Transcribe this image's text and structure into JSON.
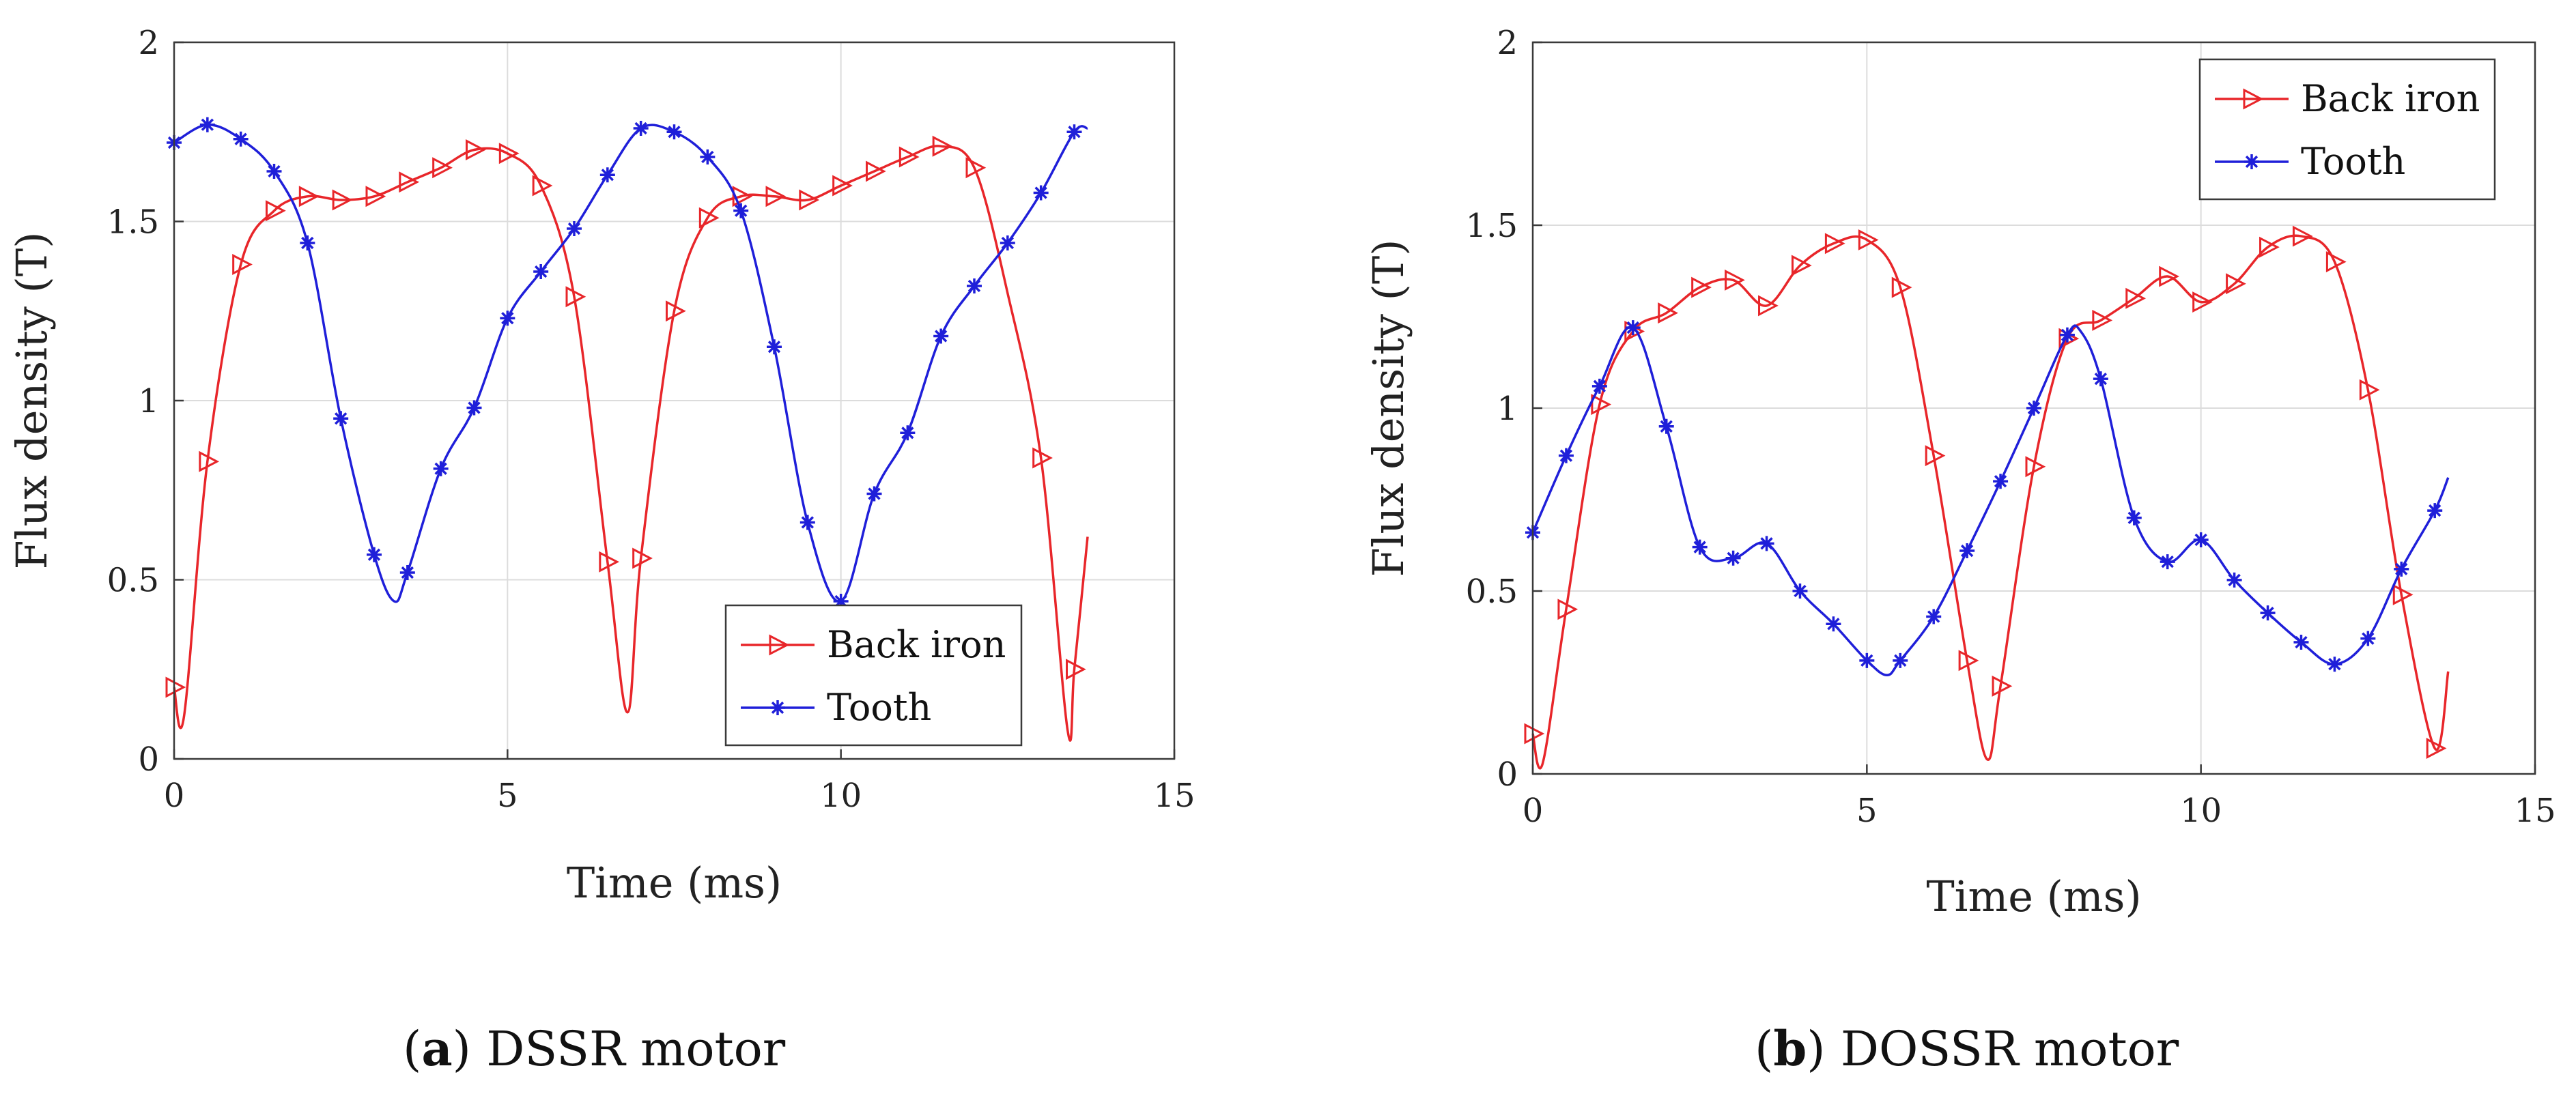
{
  "chart_data": [
    {
      "type": "line",
      "caption_letter": "a",
      "caption_text": ") DSSR motor",
      "xlabel": "Time (ms)",
      "ylabel": "Flux density (T)",
      "xlim": [
        0,
        15
      ],
      "ylim": [
        0,
        2
      ],
      "xticks": [
        0,
        5,
        10,
        15
      ],
      "yticks": [
        0,
        0.5,
        1,
        1.5,
        2
      ],
      "grid": true,
      "legend_position": "bottom-right",
      "series": [
        {
          "name": "Back iron",
          "color": "#e8262a",
          "marker": "triangle-right",
          "x": [
            0,
            0.15,
            0.5,
            1,
            1.5,
            2,
            2.5,
            3,
            3.5,
            4,
            4.5,
            5,
            5.5,
            6,
            6.5,
            6.8,
            7,
            7.5,
            8,
            8.5,
            9,
            9.5,
            10,
            10.5,
            11,
            11.5,
            12,
            12.5,
            13,
            13.4,
            13.5,
            13.7
          ],
          "y": [
            0.2,
            0.12,
            0.83,
            1.38,
            1.53,
            1.57,
            1.56,
            1.57,
            1.61,
            1.65,
            1.7,
            1.69,
            1.6,
            1.29,
            0.55,
            0.13,
            0.56,
            1.25,
            1.51,
            1.57,
            1.57,
            1.56,
            1.6,
            1.64,
            1.68,
            1.71,
            1.65,
            1.3,
            0.84,
            0.08,
            0.25,
            0.62
          ],
          "marker_x": [
            0,
            0.5,
            1,
            1.5,
            2,
            2.5,
            3,
            3.5,
            4,
            4.5,
            5,
            5.5,
            6,
            6.5,
            7,
            7.5,
            8,
            8.5,
            9,
            9.5,
            10,
            10.5,
            11,
            11.5,
            12,
            13,
            13.5
          ],
          "marker_y": [
            0.2,
            0.83,
            1.38,
            1.53,
            1.57,
            1.56,
            1.57,
            1.61,
            1.65,
            1.7,
            1.69,
            1.6,
            1.29,
            0.55,
            0.56,
            1.25,
            1.51,
            1.57,
            1.57,
            1.56,
            1.6,
            1.64,
            1.68,
            1.71,
            1.65,
            0.84,
            0.25
          ]
        },
        {
          "name": "Tooth",
          "color": "#1f1fd9",
          "marker": "asterisk",
          "x": [
            0,
            0.5,
            1,
            1.5,
            2,
            2.5,
            3,
            3.3,
            3.5,
            4,
            4.5,
            5,
            5.5,
            6,
            6.5,
            7,
            7.5,
            8,
            8.5,
            9,
            9.5,
            10,
            10.5,
            11,
            11.5,
            12,
            12.5,
            13,
            13.5,
            13.7
          ],
          "y": [
            1.72,
            1.77,
            1.73,
            1.64,
            1.44,
            0.95,
            0.57,
            0.44,
            0.52,
            0.81,
            0.98,
            1.23,
            1.36,
            1.48,
            1.63,
            1.76,
            1.75,
            1.68,
            1.53,
            1.15,
            0.66,
            0.44,
            0.74,
            0.91,
            1.18,
            1.32,
            1.44,
            1.58,
            1.75,
            1.76
          ],
          "marker_x": [
            0,
            0.5,
            1,
            1.5,
            2,
            2.5,
            3,
            3.5,
            4,
            4.5,
            5,
            5.5,
            6,
            6.5,
            7,
            7.5,
            8,
            8.5,
            9,
            9.5,
            10,
            10.5,
            11,
            11.5,
            12,
            12.5,
            13,
            13.5
          ],
          "marker_y": [
            1.72,
            1.77,
            1.73,
            1.64,
            1.44,
            0.95,
            0.57,
            0.52,
            0.81,
            0.98,
            1.23,
            1.36,
            1.48,
            1.63,
            1.76,
            1.75,
            1.68,
            1.53,
            1.15,
            0.66,
            0.44,
            0.74,
            0.91,
            1.18,
            1.32,
            1.44,
            1.58,
            1.75
          ]
        }
      ]
    },
    {
      "type": "line",
      "caption_letter": "b",
      "caption_text": ") DOSSR motor",
      "xlabel": "Time (ms)",
      "ylabel": "Flux density (T)",
      "xlim": [
        0,
        15
      ],
      "ylim": [
        0,
        2
      ],
      "xticks": [
        0,
        5,
        10,
        15
      ],
      "yticks": [
        0,
        0.5,
        1,
        1.5,
        2
      ],
      "grid": true,
      "legend_position": "top-right",
      "series": [
        {
          "name": "Back iron",
          "color": "#e8262a",
          "marker": "triangle-right",
          "x": [
            0,
            0.15,
            0.5,
            1,
            1.5,
            2,
            2.5,
            3,
            3.5,
            4,
            4.5,
            5,
            5.5,
            6,
            6.5,
            6.8,
            7,
            7.5,
            8,
            8.5,
            9,
            9.5,
            10,
            10.5,
            11,
            11.5,
            12,
            12.5,
            13,
            13.5,
            13.7
          ],
          "y": [
            0.11,
            0.03,
            0.45,
            1.01,
            1.21,
            1.26,
            1.33,
            1.35,
            1.28,
            1.39,
            1.45,
            1.46,
            1.33,
            0.87,
            0.31,
            0.04,
            0.24,
            0.84,
            1.19,
            1.24,
            1.3,
            1.36,
            1.29,
            1.34,
            1.44,
            1.47,
            1.4,
            1.05,
            0.49,
            0.07,
            0.28
          ],
          "marker_x": [
            0,
            0.5,
            1,
            1.5,
            2,
            2.5,
            3,
            3.5,
            4,
            4.5,
            5,
            5.5,
            6,
            6.5,
            7,
            7.5,
            8,
            8.5,
            9,
            9.5,
            10,
            10.5,
            11,
            11.5,
            12,
            12.5,
            13,
            13.5
          ],
          "marker_y": [
            0.11,
            0.45,
            1.01,
            1.21,
            1.26,
            1.33,
            1.35,
            1.28,
            1.39,
            1.45,
            1.46,
            1.33,
            0.87,
            0.31,
            0.24,
            0.84,
            1.19,
            1.24,
            1.3,
            1.36,
            1.29,
            1.34,
            1.44,
            1.47,
            1.4,
            1.05,
            0.49,
            0.07
          ]
        },
        {
          "name": "Tooth",
          "color": "#1f1fd9",
          "marker": "asterisk",
          "x": [
            0,
            0.5,
            1,
            1.5,
            2,
            2.5,
            3,
            3.5,
            4,
            4.5,
            5,
            5.3,
            5.5,
            6,
            6.5,
            7,
            7.5,
            8,
            8.2,
            8.5,
            9,
            9.5,
            10,
            10.5,
            11,
            11.5,
            12,
            12.5,
            13,
            13.5,
            13.7
          ],
          "y": [
            0.66,
            0.87,
            1.06,
            1.22,
            0.95,
            0.62,
            0.59,
            0.63,
            0.5,
            0.41,
            0.31,
            0.27,
            0.31,
            0.43,
            0.61,
            0.8,
            1.0,
            1.2,
            1.21,
            1.08,
            0.7,
            0.58,
            0.64,
            0.53,
            0.44,
            0.36,
            0.3,
            0.37,
            0.56,
            0.72,
            0.81
          ],
          "marker_x": [
            0,
            0.5,
            1,
            1.5,
            2,
            2.5,
            3,
            3.5,
            4,
            4.5,
            5,
            5.5,
            6,
            6.5,
            7,
            7.5,
            8,
            8.5,
            9,
            9.5,
            10,
            10.5,
            11,
            11.5,
            12,
            12.5,
            13,
            13.5
          ],
          "marker_y": [
            0.66,
            0.87,
            1.06,
            1.22,
            0.95,
            0.62,
            0.59,
            0.63,
            0.5,
            0.41,
            0.31,
            0.31,
            0.43,
            0.61,
            0.8,
            1.0,
            1.2,
            1.08,
            0.7,
            0.58,
            0.64,
            0.53,
            0.44,
            0.36,
            0.3,
            0.37,
            0.56,
            0.72
          ]
        }
      ]
    }
  ]
}
